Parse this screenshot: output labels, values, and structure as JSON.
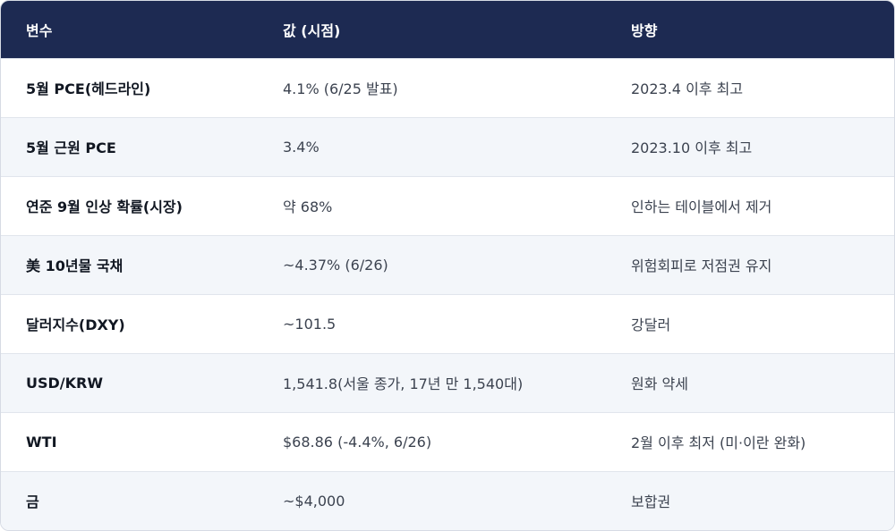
{
  "table": {
    "headers": [
      "변수",
      "값 (시점)",
      "방향"
    ],
    "rows": [
      {
        "variable": "5월 PCE(헤드라인)",
        "value": "4.1% (6/25 발표)",
        "direction": "2023.4 이후 최고"
      },
      {
        "variable": "5월 근원 PCE",
        "value": "3.4%",
        "direction": "2023.10 이후 최고"
      },
      {
        "variable": "연준 9월 인상 확률(시장)",
        "value": "약 68%",
        "direction": "인하는 테이블에서 제거"
      },
      {
        "variable": "美 10년물 국채",
        "value": "~4.37% (6/26)",
        "direction": "위험회피로 저점권 유지"
      },
      {
        "variable": "달러지수(DXY)",
        "value": "~101.5",
        "direction": "강달러"
      },
      {
        "variable": "USD/KRW",
        "value": "1,541.8(서울 종가, 17년 만 1,540대)",
        "direction": "원화 약세"
      },
      {
        "variable": "WTI",
        "value": "$68.86 (-4.4%, 6/26)",
        "direction": "2월 이후 최저 (미·이란 완화)"
      },
      {
        "variable": "금",
        "value": "~$4,000",
        "direction": "보합권"
      }
    ]
  },
  "colors": {
    "header_bg": "#1d2a52",
    "stripe_bg": "#f3f6fa",
    "border": "#d6dbe4"
  }
}
